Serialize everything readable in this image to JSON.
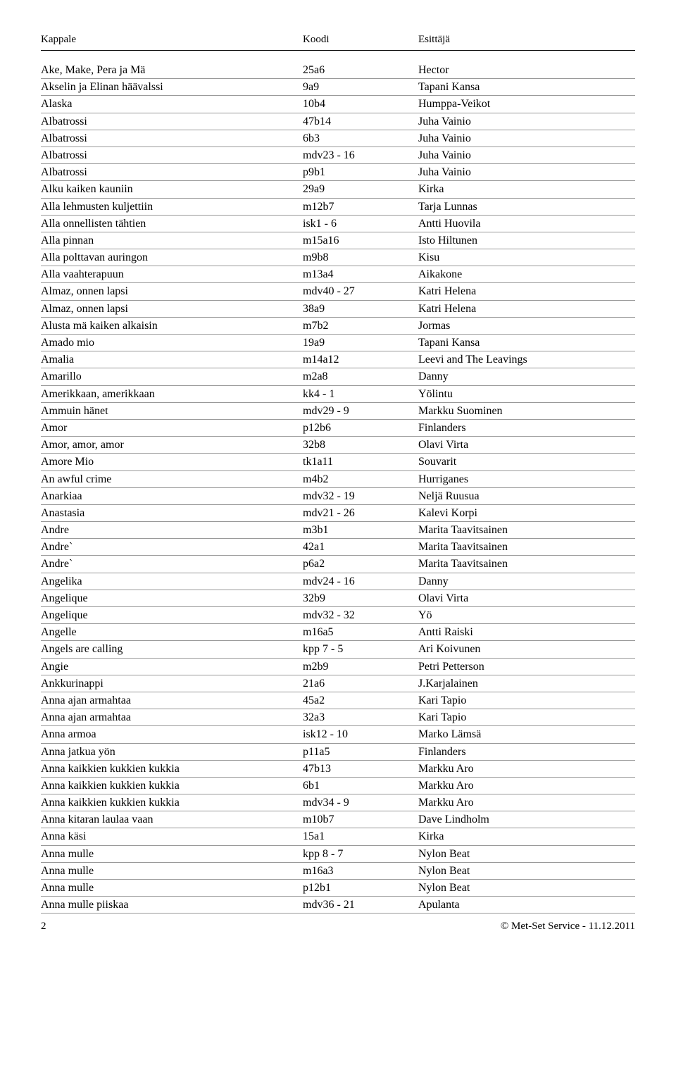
{
  "header": {
    "col1": "Kappale",
    "col2": "Koodi",
    "col3": "Esittäjä"
  },
  "rows": [
    {
      "kappale": "Ake, Make, Pera ja Mä",
      "koodi": "25a6",
      "esittaja": "Hector"
    },
    {
      "kappale": "Akselin ja Elinan häävalssi",
      "koodi": "9a9",
      "esittaja": "Tapani Kansa"
    },
    {
      "kappale": "Alaska",
      "koodi": "10b4",
      "esittaja": "Humppa-Veikot"
    },
    {
      "kappale": "Albatrossi",
      "koodi": "47b14",
      "esittaja": "Juha Vainio"
    },
    {
      "kappale": "Albatrossi",
      "koodi": "6b3",
      "esittaja": "Juha Vainio"
    },
    {
      "kappale": "Albatrossi",
      "koodi": "mdv23 - 16",
      "esittaja": "Juha Vainio"
    },
    {
      "kappale": "Albatrossi",
      "koodi": "p9b1",
      "esittaja": "Juha Vainio"
    },
    {
      "kappale": "Alku kaiken kauniin",
      "koodi": "29a9",
      "esittaja": "Kirka"
    },
    {
      "kappale": "Alla lehmusten kuljettiin",
      "koodi": "m12b7",
      "esittaja": "Tarja Lunnas"
    },
    {
      "kappale": "Alla onnellisten tähtien",
      "koodi": "isk1 - 6",
      "esittaja": "Antti Huovila"
    },
    {
      "kappale": "Alla pinnan",
      "koodi": "m15a16",
      "esittaja": "Isto Hiltunen"
    },
    {
      "kappale": "Alla polttavan auringon",
      "koodi": "m9b8",
      "esittaja": "Kisu"
    },
    {
      "kappale": "Alla vaahterapuun",
      "koodi": "m13a4",
      "esittaja": "Aikakone"
    },
    {
      "kappale": "Almaz, onnen lapsi",
      "koodi": "mdv40 - 27",
      "esittaja": "Katri Helena"
    },
    {
      "kappale": "Almaz, onnen lapsi",
      "koodi": "38a9",
      "esittaja": "Katri Helena"
    },
    {
      "kappale": "Alusta mä kaiken alkaisin",
      "koodi": "m7b2",
      "esittaja": "Jormas"
    },
    {
      "kappale": "Amado mio",
      "koodi": "19a9",
      "esittaja": "Tapani Kansa"
    },
    {
      "kappale": "Amalia",
      "koodi": "m14a12",
      "esittaja": "Leevi and The Leavings"
    },
    {
      "kappale": "Amarillo",
      "koodi": "m2a8",
      "esittaja": "Danny"
    },
    {
      "kappale": "Amerikkaan, amerikkaan",
      "koodi": "kk4 - 1",
      "esittaja": "Yölintu"
    },
    {
      "kappale": "Ammuin hänet",
      "koodi": "mdv29 - 9",
      "esittaja": "Markku Suominen"
    },
    {
      "kappale": "Amor",
      "koodi": "p12b6",
      "esittaja": "Finlanders"
    },
    {
      "kappale": "Amor, amor, amor",
      "koodi": "32b8",
      "esittaja": "Olavi Virta"
    },
    {
      "kappale": "Amore Mio",
      "koodi": "tk1a11",
      "esittaja": "Souvarit"
    },
    {
      "kappale": "An awful crime",
      "koodi": "m4b2",
      "esittaja": "Hurriganes"
    },
    {
      "kappale": "Anarkiaa",
      "koodi": "mdv32 - 19",
      "esittaja": "Neljä Ruusua"
    },
    {
      "kappale": "Anastasia",
      "koodi": "mdv21 - 26",
      "esittaja": "Kalevi Korpi"
    },
    {
      "kappale": "Andre",
      "koodi": "m3b1",
      "esittaja": "Marita Taavitsainen"
    },
    {
      "kappale": "Andre`",
      "koodi": "42a1",
      "esittaja": "Marita Taavitsainen"
    },
    {
      "kappale": "Andre`",
      "koodi": "p6a2",
      "esittaja": "Marita Taavitsainen"
    },
    {
      "kappale": "Angelika",
      "koodi": "mdv24 - 16",
      "esittaja": "Danny"
    },
    {
      "kappale": "Angelique",
      "koodi": "32b9",
      "esittaja": "Olavi Virta"
    },
    {
      "kappale": "Angelique",
      "koodi": "mdv32 - 32",
      "esittaja": "Yö"
    },
    {
      "kappale": "Angelle",
      "koodi": "m16a5",
      "esittaja": "Antti Raiski"
    },
    {
      "kappale": "Angels are calling",
      "koodi": "kpp 7 - 5",
      "esittaja": "Ari Koivunen"
    },
    {
      "kappale": "Angie",
      "koodi": "m2b9",
      "esittaja": "Petri Petterson"
    },
    {
      "kappale": "Ankkurinappi",
      "koodi": "21a6",
      "esittaja": "J.Karjalainen"
    },
    {
      "kappale": "Anna ajan armahtaa",
      "koodi": "45a2",
      "esittaja": "Kari Tapio"
    },
    {
      "kappale": "Anna ajan armahtaa",
      "koodi": "32a3",
      "esittaja": "Kari Tapio"
    },
    {
      "kappale": "Anna armoa",
      "koodi": "isk12 - 10",
      "esittaja": "Marko Lämsä"
    },
    {
      "kappale": "Anna jatkua yön",
      "koodi": "p11a5",
      "esittaja": "Finlanders"
    },
    {
      "kappale": "Anna kaikkien kukkien kukkia",
      "koodi": "47b13",
      "esittaja": "Markku Aro"
    },
    {
      "kappale": "Anna kaikkien kukkien kukkia",
      "koodi": "6b1",
      "esittaja": "Markku Aro"
    },
    {
      "kappale": "Anna kaikkien kukkien kukkia",
      "koodi": "mdv34 - 9",
      "esittaja": "Markku Aro"
    },
    {
      "kappale": "Anna kitaran laulaa vaan",
      "koodi": "m10b7",
      "esittaja": "Dave Lindholm"
    },
    {
      "kappale": "Anna käsi",
      "koodi": "15a1",
      "esittaja": "Kirka"
    },
    {
      "kappale": "Anna mulle",
      "koodi": "kpp 8 - 7",
      "esittaja": "Nylon Beat"
    },
    {
      "kappale": "Anna mulle",
      "koodi": "m16a3",
      "esittaja": "Nylon Beat"
    },
    {
      "kappale": "Anna mulle",
      "koodi": "p12b1",
      "esittaja": "Nylon Beat"
    },
    {
      "kappale": "Anna mulle piiskaa",
      "koodi": "mdv36 - 21",
      "esittaja": "Apulanta"
    }
  ],
  "footer": {
    "page": "2",
    "copyright": "© Met-Set Service - 11.12.2011"
  }
}
